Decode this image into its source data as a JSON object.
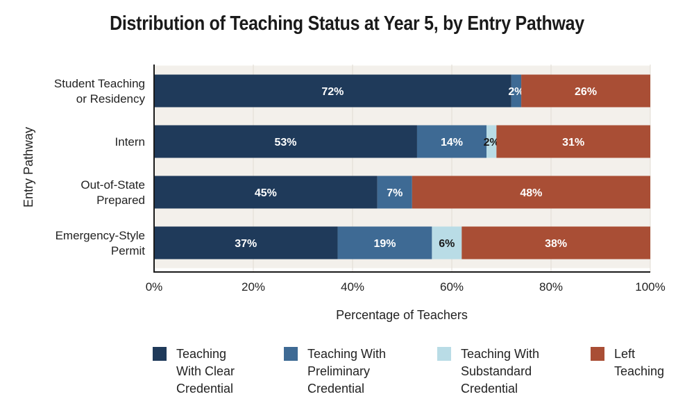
{
  "chart_data": {
    "type": "bar",
    "orientation": "horizontal",
    "stacked": true,
    "title": "Distribution of Teaching Status at Year 5, by Entry Pathway",
    "xlabel": "Percentage of Teachers",
    "ylabel": "Entry Pathway",
    "xlim": [
      0,
      100
    ],
    "xticks": [
      "0%",
      "20%",
      "40%",
      "60%",
      "80%",
      "100%"
    ],
    "xtick_values": [
      0,
      20,
      40,
      60,
      80,
      100
    ],
    "grid": true,
    "legend_position": "bottom",
    "categories": [
      "Student Teaching\nor Residency",
      "Intern",
      "Out-of-State\nPrepared",
      "Emergency-Style\nPermit"
    ],
    "series": [
      {
        "name": "Teaching\nWith Clear\nCredential",
        "color": "#1f3a5a",
        "label_color": "#ffffff",
        "values": [
          72,
          53,
          45,
          37
        ]
      },
      {
        "name": "Teaching With\nPreliminary\nCredential",
        "color": "#3e6a94",
        "label_color": "#ffffff",
        "values": [
          2,
          14,
          7,
          19
        ]
      },
      {
        "name": "Teaching With\nSubstandard\nCredential",
        "color": "#b9dce6",
        "label_color": "#1a1a1a",
        "values": [
          0,
          2,
          0,
          6
        ]
      },
      {
        "name": "Left\nTeaching",
        "color": "#a94e35",
        "label_color": "#ffffff",
        "values": [
          26,
          31,
          48,
          38
        ]
      }
    ],
    "data_labels": [
      [
        "72%",
        "2%",
        "",
        "26%"
      ],
      [
        "53%",
        "14%",
        "2%",
        "31%"
      ],
      [
        "45%",
        "7%",
        "",
        "48%"
      ],
      [
        "37%",
        "19%",
        "6%",
        "38%"
      ]
    ],
    "colors": {
      "band": "#f3f0eb",
      "axis": "#1a1a1a",
      "grid": "#e0dbd3",
      "text": "#222222"
    }
  }
}
